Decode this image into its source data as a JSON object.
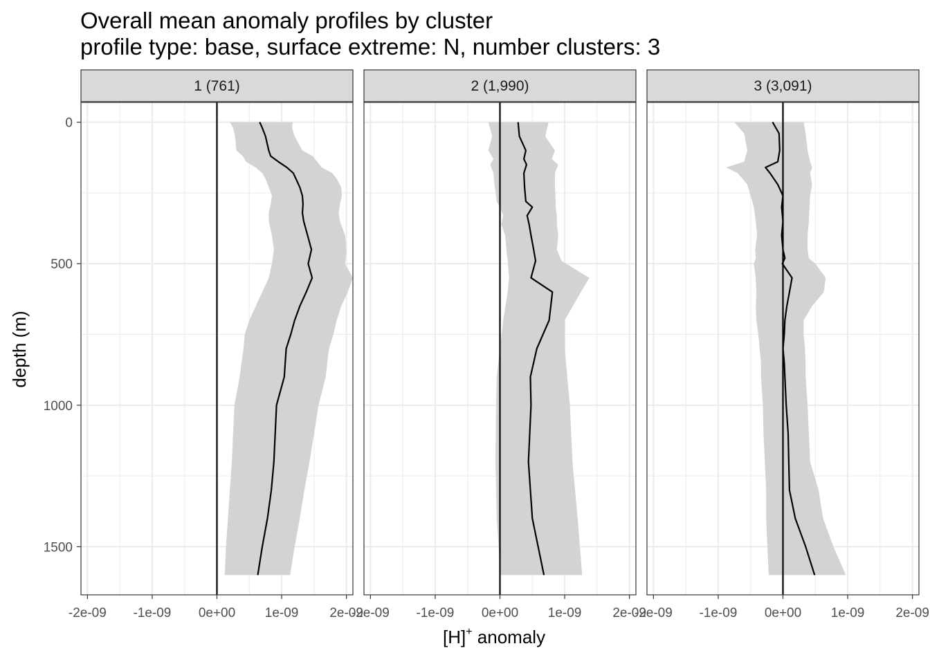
{
  "chart_data": {
    "type": "line",
    "title": "Overall mean anomaly profiles by cluster",
    "subtitle": "profile type: base, surface extreme: N, number clusters: 3",
    "xlabel_main": "[H]",
    "xlabel_sup": "+",
    "xlabel_rest": " anomaly",
    "ylabel": "depth (m)",
    "xlim": [
      -2.1e-09,
      2.1e-09
    ],
    "ylim": [
      1670,
      -70
    ],
    "x_ticks": [
      -2e-09,
      -1e-09,
      0,
      1e-09,
      2e-09
    ],
    "x_tick_labels": [
      "-2e-09",
      "-1e-09",
      "0e+00",
      "1e-09",
      "2e-09"
    ],
    "y_ticks": [
      0,
      500,
      1000,
      1500
    ],
    "y_tick_labels": [
      "0",
      "500",
      "1000",
      "1500"
    ],
    "reference_line_x": 0,
    "colors": {
      "mean_line": "#000000",
      "band": "#d3d3d3",
      "strip": "#d9d9d9",
      "grid": "#ebebeb",
      "panel_border": "#333333"
    },
    "panels": [
      {
        "label": "1 (761)",
        "depth": [
          0,
          20,
          50,
          100,
          120,
          140,
          160,
          180,
          200,
          230,
          260,
          290,
          320,
          350,
          400,
          450,
          500,
          550,
          600,
          650,
          700,
          750,
          800,
          900,
          1000,
          1100,
          1200,
          1300,
          1400,
          1500,
          1600
        ],
        "mean": [
          6.6e-10,
          7e-10,
          7.5e-10,
          8e-10,
          8.3e-10,
          9.5e-10,
          1.08e-09,
          1.18e-09,
          1.22e-09,
          1.28e-09,
          1.32e-09,
          1.33e-09,
          1.32e-09,
          1.34e-09,
          1.4e-09,
          1.46e-09,
          1.41e-09,
          1.47e-09,
          1.38e-09,
          1.28e-09,
          1.2e-09,
          1.14e-09,
          1.07e-09,
          1.04e-09,
          9.2e-10,
          9e-10,
          8.8e-10,
          8.4e-10,
          7.8e-10,
          7e-10,
          6.3e-10
        ],
        "lower": [
          2e-10,
          2.5e-10,
          2.8e-10,
          3e-10,
          4e-10,
          4.5e-10,
          6e-10,
          7e-10,
          7.5e-10,
          8e-10,
          8.5e-10,
          8.3e-10,
          8e-10,
          8e-10,
          8.5e-10,
          8.8e-10,
          8.5e-10,
          8e-10,
          7e-10,
          6e-10,
          5e-10,
          4.3e-10,
          4.1e-10,
          3.5e-10,
          2.7e-10,
          2.5e-10,
          2.3e-10,
          2e-10,
          1.7e-10,
          1.4e-10,
          1.2e-10
        ],
        "upper": [
          1.17e-09,
          1.16e-09,
          1.2e-09,
          1.32e-09,
          1.48e-09,
          1.55e-09,
          1.62e-09,
          1.78e-09,
          1.85e-09,
          1.92e-09,
          1.93e-09,
          1.9e-09,
          1.88e-09,
          1.9e-09,
          1.98e-09,
          2e-09,
          1.98e-09,
          2.1e-09,
          2.02e-09,
          1.92e-09,
          1.85e-09,
          1.8e-09,
          1.73e-09,
          1.68e-09,
          1.57e-09,
          1.5e-09,
          1.43e-09,
          1.35e-09,
          1.28e-09,
          1.2e-09,
          1.13e-09
        ]
      },
      {
        "label": "2 (1,990)",
        "depth": [
          0,
          50,
          100,
          130,
          150,
          180,
          230,
          280,
          300,
          330,
          360,
          400,
          450,
          490,
          550,
          600,
          700,
          800,
          900,
          1000,
          1200,
          1400,
          1600
        ],
        "mean": [
          2.8e-10,
          3e-10,
          4e-10,
          3.7e-10,
          4.1e-10,
          3.7e-10,
          3.8e-10,
          4e-10,
          5e-10,
          4.2e-10,
          4.5e-10,
          4.8e-10,
          5.2e-10,
          5.5e-10,
          4.8e-10,
          8.1e-10,
          7.6e-10,
          5.7e-10,
          4.7e-10,
          4.8e-10,
          4.4e-10,
          5e-10,
          6.8e-10
        ],
        "lower": [
          -1.8e-10,
          -1.2e-10,
          -1.8e-10,
          -1e-10,
          -1.5e-10,
          -1e-10,
          -8e-11,
          -5e-11,
          0,
          5e-11,
          2e-11,
          8e-11,
          1e-10,
          1.2e-10,
          1.4e-10,
          1.2e-10,
          5e-11,
          0,
          -5e-11,
          -6e-11,
          -7e-11,
          -5e-11,
          1e-11
        ],
        "upper": [
          7.5e-10,
          7e-10,
          8.5e-10,
          8e-10,
          9e-10,
          8.5e-10,
          8.5e-10,
          8.6e-10,
          8.6e-10,
          8.8e-10,
          8.8e-10,
          9e-10,
          8.8e-10,
          9.5e-10,
          1.38e-09,
          1.25e-09,
          1e-09,
          1e-09,
          1.04e-09,
          1.08e-09,
          1.12e-09,
          1.2e-09,
          1.27e-09
        ]
      },
      {
        "label": "3 (3,091)",
        "depth": [
          0,
          40,
          100,
          140,
          160,
          180,
          220,
          260,
          300,
          350,
          400,
          450,
          480,
          500,
          550,
          600,
          650,
          700,
          750,
          800,
          850,
          900,
          1000,
          1100,
          1200,
          1300,
          1400,
          1500,
          1600
        ],
        "mean": [
          -1.6e-10,
          -6e-11,
          -5e-11,
          -8e-11,
          -2.7e-10,
          -2e-10,
          -8e-11,
          0,
          -2e-11,
          0,
          -2e-11,
          0,
          3e-11,
          -1e-11,
          1.4e-10,
          1e-10,
          6e-11,
          3e-11,
          2e-11,
          0,
          2e-11,
          3e-11,
          5e-11,
          8e-11,
          9e-11,
          1e-10,
          1.9e-10,
          3.5e-10,
          4.9e-10
        ],
        "lower": [
          -7.5e-10,
          -6e-10,
          -5.5e-10,
          -6e-10,
          -8.8e-10,
          -7e-10,
          -5.5e-10,
          -5e-10,
          -4.5e-10,
          -4.2e-10,
          -4e-10,
          -4.3e-10,
          -4.2e-10,
          -4.5e-10,
          -4.2e-10,
          -4.1e-10,
          -4.2e-10,
          -4.1e-10,
          -3.8e-10,
          -3.6e-10,
          -3.4e-10,
          -3.4e-10,
          -3.1e-10,
          -3e-10,
          -2.8e-10,
          -2.6e-10,
          -2.6e-10,
          -2.4e-10,
          -2.2e-10
        ],
        "upper": [
          3.2e-10,
          3.5e-10,
          3.8e-10,
          4.2e-10,
          4.5e-10,
          4.2e-10,
          4.5e-10,
          4.2e-10,
          4.1e-10,
          4e-10,
          3.8e-10,
          3.8e-10,
          4e-10,
          5e-10,
          6.6e-10,
          6.3e-10,
          4.5e-10,
          3.2e-10,
          3.2e-10,
          3.4e-10,
          3.5e-10,
          3.5e-10,
          3.8e-10,
          4e-10,
          4.2e-10,
          5.5e-10,
          6.2e-10,
          7.8e-10,
          9.7e-10
        ]
      }
    ]
  }
}
